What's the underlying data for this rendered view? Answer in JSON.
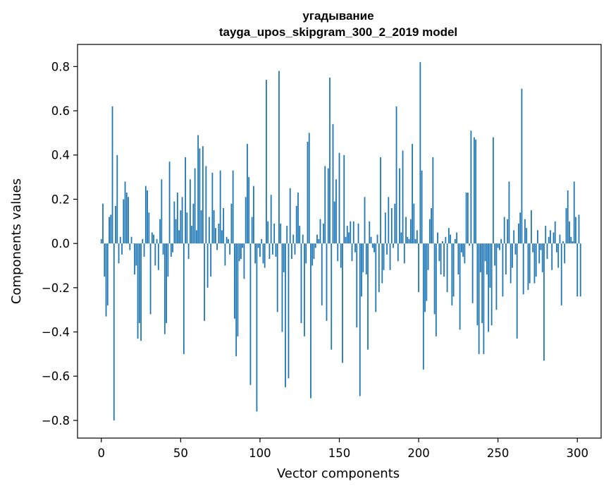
{
  "chart_data": {
    "type": "bar",
    "title": "угадывание",
    "subtitle": "tayga_upos_skipgram_300_2_2019 model",
    "xlabel": "Vector components",
    "ylabel": "Components values",
    "xlim": [
      -15,
      315
    ],
    "ylim": [
      -0.88,
      0.9
    ],
    "xticks": [
      0,
      50,
      100,
      150,
      200,
      250,
      300
    ],
    "xtick_labels": [
      "0",
      "50",
      "100",
      "150",
      "200",
      "250",
      "300"
    ],
    "yticks": [
      -0.8,
      -0.6,
      -0.4,
      -0.2,
      0.0,
      0.2,
      0.4,
      0.6,
      0.8
    ],
    "ytick_labels": [
      "−0.8",
      "−0.6",
      "−0.4",
      "−0.2",
      "0.0",
      "0.2",
      "0.4",
      "0.6",
      "0.8"
    ],
    "bar_color": "#1f77b4",
    "grid": false,
    "values": [
      0.02,
      0.18,
      -0.15,
      -0.33,
      -0.28,
      0.12,
      0.13,
      0.62,
      -0.8,
      0.17,
      0.4,
      -0.09,
      0.03,
      -0.05,
      0.2,
      0.28,
      0.23,
      0.21,
      -0.03,
      0.03,
      0.0,
      -0.14,
      -0.1,
      -0.43,
      -0.36,
      -0.44,
      0.02,
      -0.06,
      0.26,
      0.24,
      0.14,
      -0.32,
      0.05,
      0.04,
      -0.1,
      0.02,
      -0.12,
      0.11,
      0.29,
      -0.05,
      -0.41,
      -0.36,
      -0.15,
      0.37,
      -0.06,
      -0.04,
      0.19,
      0.11,
      0.23,
      0.06,
      0.15,
      0.21,
      -0.5,
      0.39,
      0.14,
      -0.07,
      0.29,
      0.08,
      0.18,
      0.34,
      0.06,
      0.49,
      0.43,
      0.15,
      0.44,
      -0.35,
      0.35,
      -0.2,
      0.12,
      -0.15,
      0.32,
      0.15,
      0.07,
      -0.03,
      0.09,
      0.33,
      0.06,
      0.16,
      -0.1,
      0.03,
      0.02,
      -0.05,
      0.18,
      0.33,
      -0.34,
      -0.51,
      -0.42,
      -0.08,
      -0.07,
      -0.02,
      -0.16,
      0.21,
      0.45,
      0.3,
      -0.64,
      0.12,
      0.26,
      -0.09,
      -0.76,
      -0.02,
      -0.06,
      0.02,
      -0.09,
      -0.11,
      0.74,
      0.1,
      -0.07,
      0.22,
      -0.05,
      0.09,
      -0.06,
      -0.31,
      0.78,
      0.09,
      -0.4,
      -0.13,
      -0.65,
      0.08,
      -0.61,
      0.25,
      -0.07,
      0.04,
      -0.05,
      0.17,
      0.23,
      0.08,
      -0.36,
      0.04,
      -0.42,
      -0.09,
      0.46,
      0.5,
      -0.7,
      -0.1,
      -0.07,
      -0.02,
      0.04,
      0.02,
      0.11,
      -0.28,
      0.09,
      0.35,
      -0.35,
      0.34,
      0.75,
      -0.48,
      0.54,
      0.19,
      0.29,
      -0.08,
      0.41,
      -0.11,
      -0.54,
      0.4,
      0.03,
      0.08,
      0.05,
      0.1,
      -0.08,
      0.1,
      -0.04,
      -0.38,
      0.09,
      -0.69,
      -0.24,
      -0.13,
      0.21,
      -0.14,
      -0.48,
      0.1,
      0.03,
      -0.02,
      -0.04,
      -0.31,
      0.04,
      -0.22,
      0.39,
      -0.18,
      -0.12,
      0.14,
      -0.05,
      0.21,
      -0.12,
      0.16,
      -0.02,
      0.18,
      0.62,
      -0.08,
      0.34,
      0.05,
      0.42,
      -0.09,
      0.12,
      0.03,
      0.02,
      0.11,
      0.45,
      0.18,
      0.02,
      0.06,
      -0.22,
      0.82,
      0.33,
      -0.57,
      -0.31,
      -0.26,
      -0.12,
      0.11,
      0.16,
      0.39,
      -0.32,
      -0.42,
      0.05,
      -0.08,
      -0.14,
      0.01,
      -0.15,
      0.03,
      -0.22,
      0.07,
      0.04,
      -0.28,
      -0.24,
      0.02,
      0.05,
      -0.14,
      -0.39,
      -0.04,
      -0.06,
      -0.09,
      0.23,
      0.23,
      -0.01,
      0.51,
      -0.27,
      0.48,
      0.47,
      -0.37,
      -0.5,
      -0.13,
      -0.36,
      -0.5,
      -0.08,
      -0.14,
      -0.4,
      -0.2,
      -0.37,
      0.48,
      -0.1,
      -0.3,
      -0.02,
      -0.03,
      0.02,
      -0.24,
      0.12,
      -0.14,
      0.11,
      0.28,
      -0.18,
      -0.11,
      0.06,
      -0.05,
      -0.43,
      0.09,
      0.14,
      0.7,
      -0.23,
      0.11,
      0.07,
      -0.21,
      -0.18,
      0.15,
      -0.04,
      -0.18,
      -0.15,
      0.06,
      -0.09,
      -0.03,
      -0.13,
      -0.53,
      0.08,
      -0.07,
      0.03,
      0.06,
      -0.12,
      0.05,
      0.1,
      -0.04,
      -0.11,
      0.04,
      -0.28,
      0.01,
      -0.09,
      0.16,
      0.24,
      0.1,
      0.03,
      0.01,
      0.28,
      0.12,
      -0.24,
      0.13,
      -0.24
    ]
  }
}
